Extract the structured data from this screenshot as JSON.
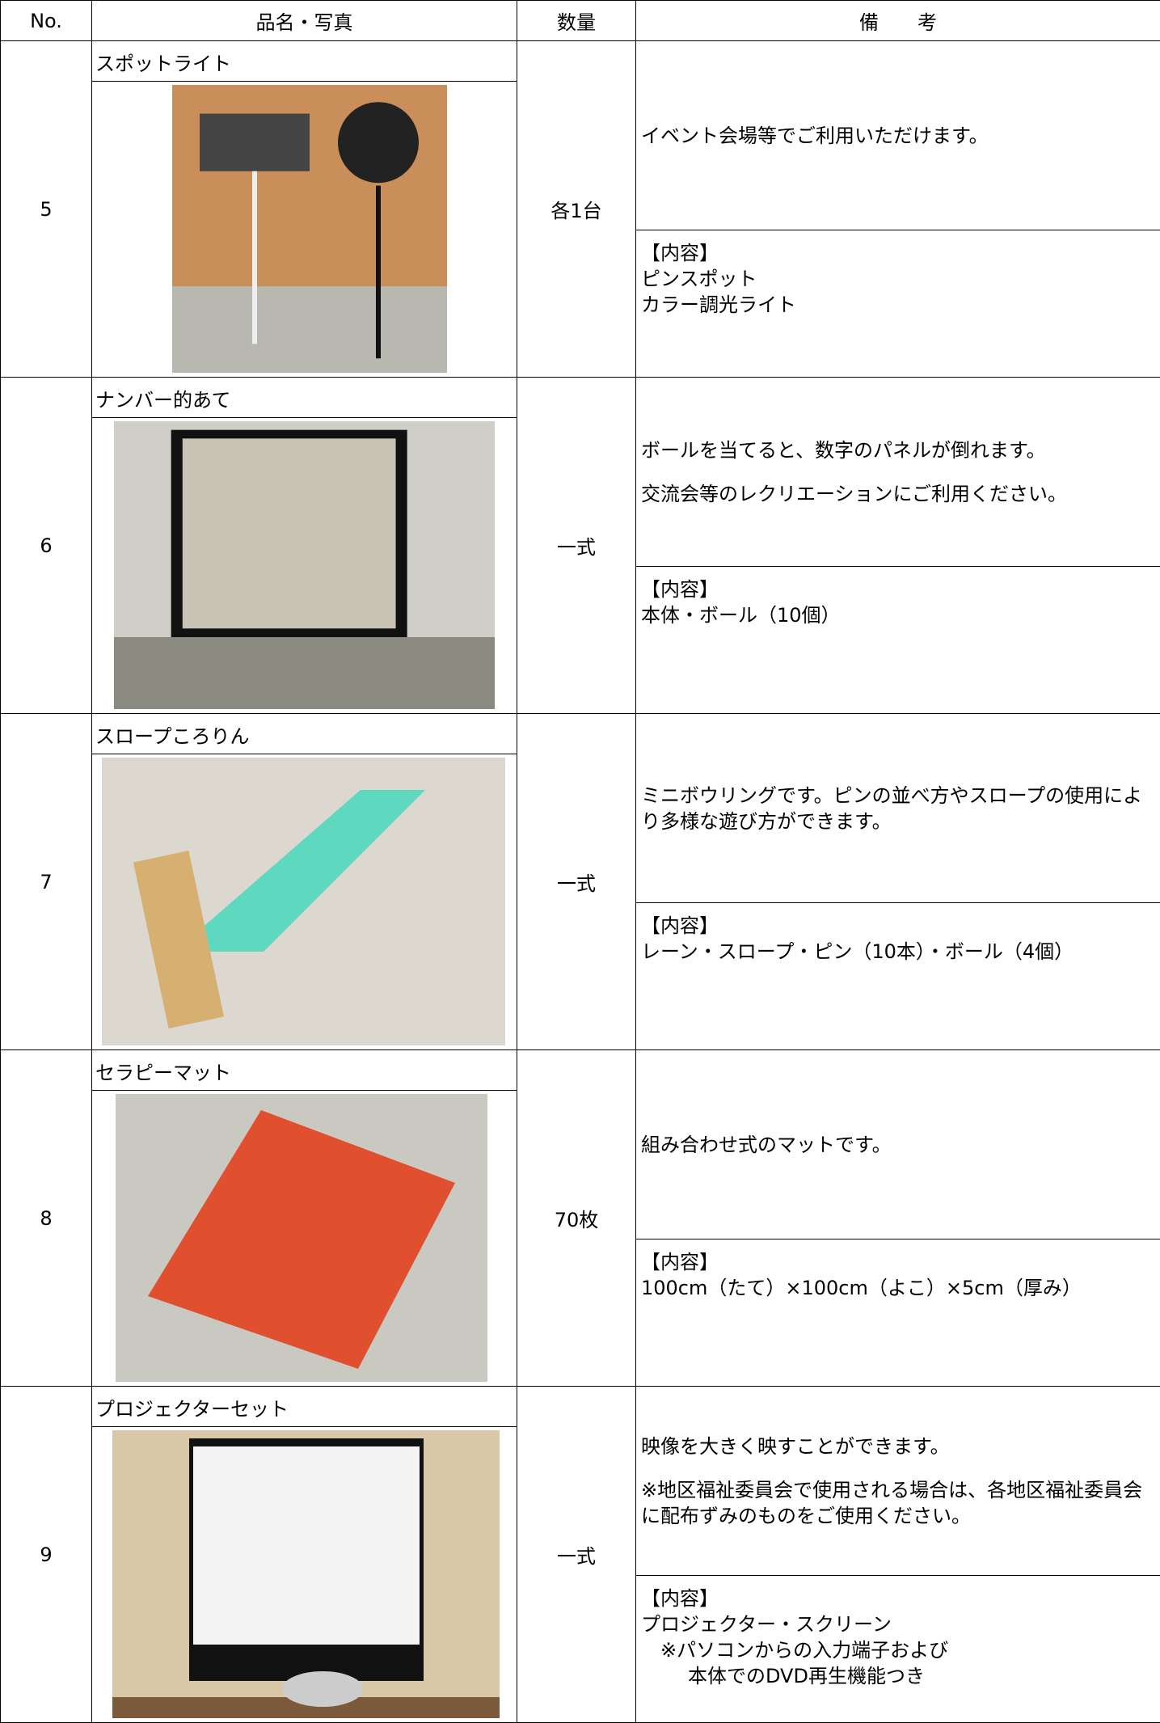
{
  "header": {
    "no": "No.",
    "name": "品名・写真",
    "qty": "数量",
    "notes": "備　　考"
  },
  "rows": [
    {
      "no": "5",
      "name": "スポットライト",
      "qty": "各1台",
      "description": [
        "イベント会場等でご利用いただけます。"
      ],
      "contents_label": "【内容】",
      "contents": [
        "ピンスポット",
        "カラー調光ライト"
      ]
    },
    {
      "no": "6",
      "name": "ナンバー的あて",
      "qty": "一式",
      "description": [
        "ボールを当てると、数字のパネルが倒れます。",
        "交流会等のレクリエーションにご利用ください。"
      ],
      "contents_label": "【内容】",
      "contents": [
        "本体・ボール（10個）"
      ]
    },
    {
      "no": "7",
      "name": "スロープころりん",
      "qty": "一式",
      "description": [
        "ミニボウリングです。ピンの並べ方やスロープの使用により多様な遊び方ができます。"
      ],
      "contents_label": "【内容】",
      "contents": [
        "レーン・スロープ・ピン（10本）・ボール（4個）"
      ]
    },
    {
      "no": "8",
      "name": "セラピーマット",
      "qty": "70枚",
      "description": [
        "組み合わせ式のマットです。"
      ],
      "contents_label": "【内容】",
      "contents": [
        "100cm（たて）×100cm（よこ）×5cm（厚み）"
      ]
    },
    {
      "no": "9",
      "name": "プロジェクターセット",
      "qty": "一式",
      "description": [
        "映像を大きく映すことができます。",
        "※地区福祉委員会で使用される場合は、各地区福祉委員会に配布ずみのものをご使用ください。"
      ],
      "contents_label": "【内容】",
      "contents": [
        "プロジェクター・スクリーン",
        "※パソコンからの入力端子および",
        "本体でのDVD再生機能つき"
      ]
    }
  ]
}
